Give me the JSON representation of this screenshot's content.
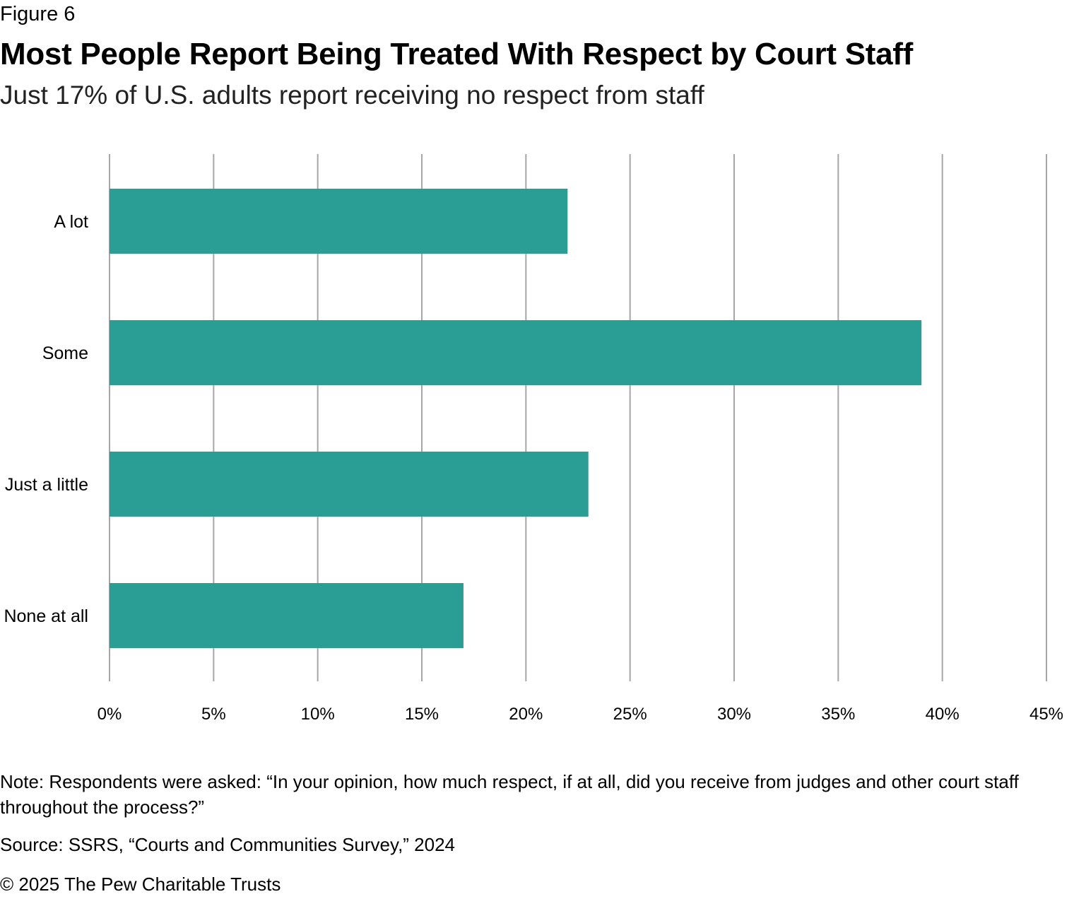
{
  "figure_label": "Figure 6",
  "chart_data": {
    "type": "bar",
    "orientation": "horizontal",
    "title": "Most People Report Being Treated With Respect by Court Staff",
    "subtitle": "Just 17% of U.S. adults report receiving no respect from staff",
    "categories": [
      "A lot",
      "Some",
      "Just a little",
      "None at all"
    ],
    "values": [
      22,
      39,
      23,
      17
    ],
    "value_unit": "%",
    "xlim": [
      0,
      45
    ],
    "x_ticks": [
      0,
      5,
      10,
      15,
      20,
      25,
      30,
      35,
      40,
      45
    ],
    "x_tick_labels": [
      "0%",
      "5%",
      "10%",
      "15%",
      "20%",
      "25%",
      "30%",
      "35%",
      "40%",
      "45%"
    ],
    "grid": "vertical",
    "bar_color": "#2a9d94",
    "grid_color": "#a6a6a6"
  },
  "note": "Note: Respondents were asked: “In your opinion, how much respect, if at all, did you receive from judges and other court staff throughout the process?”",
  "source": "Source: SSRS, “Courts and Communities Survey,” 2024",
  "copyright": "© 2025 The Pew Charitable Trusts"
}
